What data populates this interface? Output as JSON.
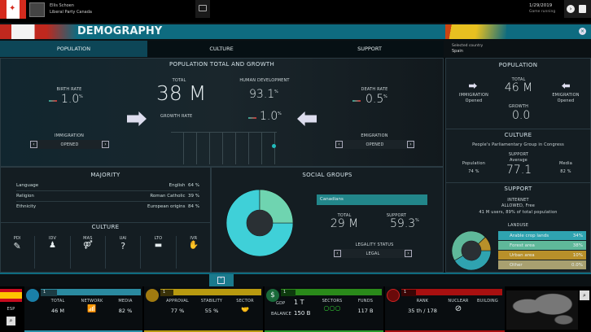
{
  "topbar": {
    "leader_name": "Ellis Schoen",
    "party": "Liberal Party Canada",
    "date": "1/29/2019",
    "status": "Game running"
  },
  "header": {
    "title": "DEMOGRAPHY",
    "tabs": [
      "POPULATION",
      "CULTURE",
      "SUPPORT"
    ],
    "active_tab": 0
  },
  "population": {
    "section_title": "POPULATION TOTAL AND GROWTH",
    "birth_rate_label": "BIRTH RATE",
    "birth_rate": "1.0",
    "death_rate_label": "DEATH RATE",
    "death_rate": "0.5",
    "total_label": "TOTAL",
    "total": "38 M",
    "hdi_label": "HUMAN DEVELOPMENT",
    "hdi": "93.1",
    "growth_label": "GROWTH RATE",
    "growth": "1.0",
    "pct": "%",
    "immigration_label": "IMMIGRATION",
    "immigration": "OPENED",
    "emigration_label": "EMIGRATION",
    "emigration": "OPENED"
  },
  "majority": {
    "title": "MAJORITY",
    "rows": [
      {
        "label": "Language",
        "value": "English",
        "pct": "64 %"
      },
      {
        "label": "Religion",
        "value": "Roman Catholic",
        "pct": "39 %"
      },
      {
        "label": "Ethnicity",
        "value": "European origins",
        "pct": "84 %"
      }
    ]
  },
  "culture": {
    "title": "CULTURE",
    "dims": [
      "PDI",
      "IDV",
      "MAS",
      "UAI",
      "LTO",
      "IVR"
    ]
  },
  "social": {
    "title": "SOCIAL GROUPS",
    "group": "Canadians",
    "total_label": "TOTAL",
    "total": "29 M",
    "support_label": "SUPPORT",
    "support": "59.3",
    "legality_label": "LEGALITY STATUS",
    "legality": "LEGAL",
    "slices": [
      75,
      25
    ],
    "colors": [
      "#3fd0d8",
      "#6fd4b0"
    ]
  },
  "side": {
    "selected_label": "Selected country",
    "country": "Spain",
    "pop_title": "POPULATION",
    "total_label": "TOTAL",
    "total": "46 M",
    "growth_label": "GROWTH",
    "growth": "0.0",
    "immigration_label": "IMMIGRATION",
    "immigration": "Opened",
    "emigration_label": "EMIGRATION",
    "emigration": "Opened",
    "culture_title": "CULTURE",
    "party": "People's Parliamentary Group in Congress",
    "population_label": "Population",
    "population_pct": "74 %",
    "support_label": "SUPPORT",
    "support_sub": "Average",
    "support": "77.1",
    "media_label": "Media",
    "media_pct": "82 %",
    "support_title": "SUPPORT",
    "internet_label": "INTERNET",
    "internet_status": "ALLOWED, Free",
    "internet_users": "41 M users, 89% of total population",
    "landuse_title": "LANDUSE",
    "landuse": [
      {
        "label": "Arable crop lands",
        "pct": "34%",
        "value": 34,
        "color": "#2fa3b0"
      },
      {
        "label": "Forest area",
        "pct": "38%",
        "value": 38,
        "color": "#5fb89a"
      },
      {
        "label": "Urban area",
        "pct": "10%",
        "value": 10,
        "color": "#b8902a"
      },
      {
        "label": "Other",
        "pct": "0.0%",
        "value": 0,
        "color": "#a8a070"
      }
    ]
  },
  "bottom": {
    "country_code": "ESP",
    "demo": {
      "level": "1",
      "total_label": "TOTAL",
      "total": "46 M",
      "network_label": "NETWORK",
      "media_label": "MEDIA",
      "media": "82 %"
    },
    "politics": {
      "level": "1",
      "approval_label": "APPROVAL",
      "approval": "77 %",
      "stability_label": "STABILITY",
      "stability": "55 %",
      "sector_label": "SECTOR"
    },
    "economy": {
      "level": "1",
      "gdp_label": "GDP",
      "gdp": "1 T",
      "balance_label": "BALANCE",
      "balance": "150 B",
      "sectors_label": "SECTORS",
      "funds_label": "FUNDS",
      "funds": "117 B"
    },
    "military": {
      "level": "1",
      "rank_label": "RANK",
      "rank": "35 th / 178",
      "nuclear_label": "NUCLEAR",
      "building_label": "BUILDING"
    }
  }
}
